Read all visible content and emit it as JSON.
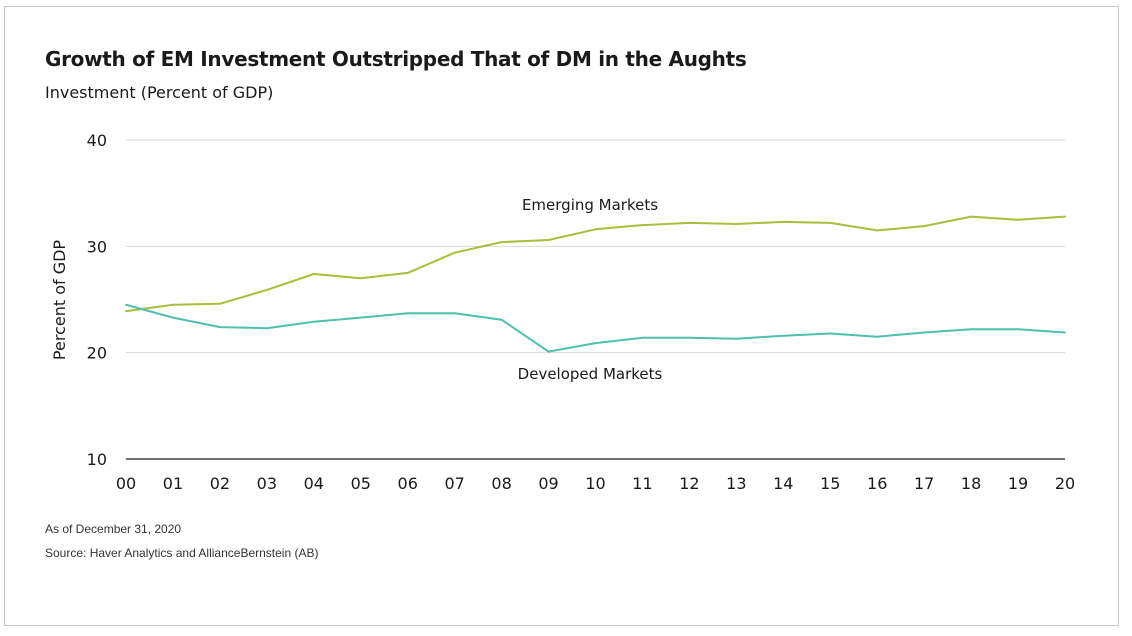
{
  "header": {
    "title": "Growth of EM Investment Outstripped That of DM in the Aughts",
    "subtitle": "Investment (Percent of GDP)"
  },
  "footer": {
    "as_of": "As of December 31, 2020",
    "source": "Source: Haver Analytics and AllianceBernstein (AB)"
  },
  "colors": {
    "emerging": "#a9bf3c",
    "developed": "#4fc0ab",
    "grid": "#d9d9d9"
  },
  "chart_data": {
    "type": "line",
    "title": "Growth of EM Investment Outstripped That of DM in the Aughts",
    "subtitle": "Investment (Percent of GDP)",
    "xlabel": "",
    "ylabel": "Percent of GDP",
    "ylim": [
      10,
      40
    ],
    "yticks": [
      40,
      30,
      20,
      10
    ],
    "grid": true,
    "categories": [
      "00",
      "01",
      "02",
      "03",
      "04",
      "05",
      "06",
      "07",
      "08",
      "09",
      "10",
      "11",
      "12",
      "13",
      "14",
      "15",
      "16",
      "17",
      "18",
      "19",
      "20"
    ],
    "series": [
      {
        "name": "Emerging Markets",
        "color": "#a9bf3c",
        "values": [
          23.9,
          24.5,
          24.6,
          25.9,
          27.4,
          27.0,
          27.5,
          29.4,
          30.4,
          30.6,
          31.6,
          32.0,
          32.2,
          32.1,
          32.3,
          32.2,
          31.5,
          31.9,
          32.8,
          32.5,
          32.8
        ]
      },
      {
        "name": "Developed Markets",
        "color": "#4fc0ab",
        "values": [
          24.5,
          23.3,
          22.4,
          22.3,
          22.9,
          23.3,
          23.7,
          23.7,
          23.1,
          20.1,
          20.9,
          21.4,
          21.4,
          21.3,
          21.6,
          21.8,
          21.5,
          21.9,
          22.2,
          22.2,
          21.9
        ]
      }
    ]
  }
}
